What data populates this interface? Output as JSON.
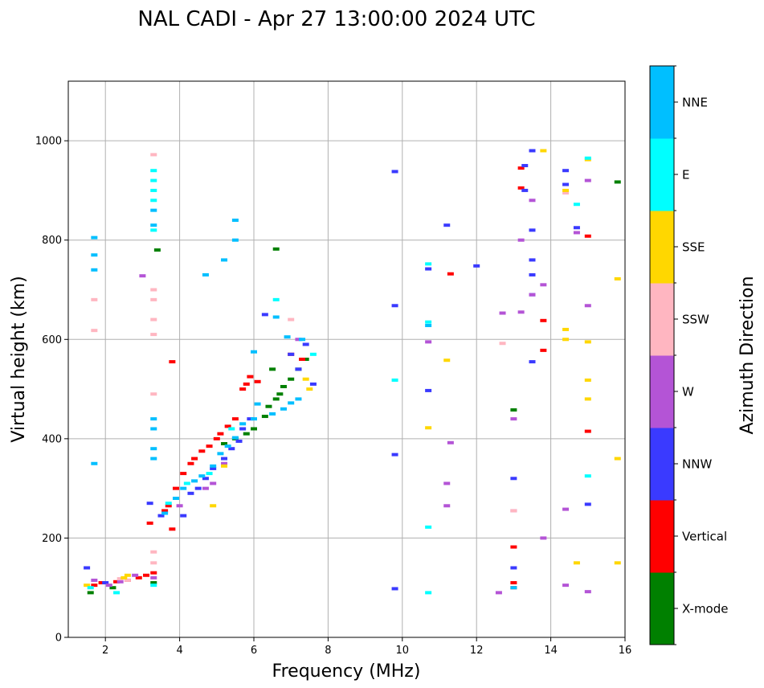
{
  "chart_data": {
    "type": "scatter",
    "title": "NAL CADI - Apr 27 13:00:00 2024 UTC",
    "xlabel": "Frequency (MHz)",
    "ylabel": "Virtual height (km)",
    "xlim": [
      1.0,
      16.0
    ],
    "ylim": [
      0,
      1120
    ],
    "xticks": [
      2,
      4,
      6,
      8,
      10,
      12,
      14,
      16
    ],
    "yticks": [
      0,
      200,
      400,
      600,
      800,
      1000
    ],
    "grid": true,
    "colorbar": {
      "title": "Azimuth Direction",
      "categories": [
        {
          "label": "X-mode",
          "color": "#008000"
        },
        {
          "label": "Vertical",
          "color": "#ff0000"
        },
        {
          "label": "NNW",
          "color": "#3a3aff"
        },
        {
          "label": "W",
          "color": "#b454d6"
        },
        {
          "label": "SSW",
          "color": "#ffb6c1"
        },
        {
          "label": "SSE",
          "color": "#ffd700"
        },
        {
          "label": "E",
          "color": "#00ffff"
        },
        {
          "label": "NNE",
          "color": "#00bfff"
        }
      ]
    },
    "series": [
      {
        "name": "X-mode",
        "points": [
          [
            1.6,
            90
          ],
          [
            2.2,
            100
          ],
          [
            3.3,
            110
          ],
          [
            5.2,
            390
          ],
          [
            5.5,
            400
          ],
          [
            5.8,
            410
          ],
          [
            6.0,
            420
          ],
          [
            6.3,
            445
          ],
          [
            6.4,
            465
          ],
          [
            6.6,
            480
          ],
          [
            6.7,
            490
          ],
          [
            6.8,
            505
          ],
          [
            7.0,
            520
          ],
          [
            7.2,
            540
          ],
          [
            7.4,
            560
          ],
          [
            6.5,
            540
          ],
          [
            6.6,
            782
          ],
          [
            3.4,
            780
          ],
          [
            13.0,
            458
          ],
          [
            15.8,
            917
          ]
        ]
      },
      {
        "name": "Vertical",
        "points": [
          [
            1.7,
            105
          ],
          [
            1.9,
            110
          ],
          [
            2.3,
            112
          ],
          [
            2.6,
            115
          ],
          [
            2.9,
            120
          ],
          [
            3.1,
            125
          ],
          [
            3.3,
            130
          ],
          [
            3.6,
            255
          ],
          [
            3.7,
            265
          ],
          [
            3.9,
            300
          ],
          [
            4.1,
            330
          ],
          [
            4.3,
            350
          ],
          [
            4.4,
            360
          ],
          [
            4.6,
            375
          ],
          [
            4.8,
            385
          ],
          [
            5.0,
            400
          ],
          [
            5.1,
            410
          ],
          [
            5.3,
            425
          ],
          [
            5.5,
            440
          ],
          [
            5.7,
            500
          ],
          [
            5.8,
            510
          ],
          [
            5.9,
            525
          ],
          [
            6.1,
            515
          ],
          [
            3.2,
            230
          ],
          [
            3.8,
            555
          ],
          [
            3.8,
            218
          ],
          [
            13.0,
            100
          ],
          [
            13.0,
            110
          ],
          [
            13.0,
            182
          ],
          [
            13.2,
            905
          ],
          [
            13.2,
            945
          ],
          [
            13.8,
            638
          ],
          [
            13.8,
            578
          ],
          [
            15.0,
            415
          ],
          [
            15.0,
            808
          ],
          [
            11.3,
            732
          ],
          [
            7.0,
            570
          ],
          [
            7.3,
            560
          ]
        ]
      },
      {
        "name": "NNW",
        "points": [
          [
            1.5,
            140
          ],
          [
            2.0,
            110
          ],
          [
            3.2,
            270
          ],
          [
            3.5,
            245
          ],
          [
            4.1,
            245
          ],
          [
            4.3,
            290
          ],
          [
            4.5,
            300
          ],
          [
            4.7,
            320
          ],
          [
            4.9,
            340
          ],
          [
            5.2,
            360
          ],
          [
            5.4,
            380
          ],
          [
            5.6,
            395
          ],
          [
            5.7,
            420
          ],
          [
            5.9,
            440
          ],
          [
            6.3,
            650
          ],
          [
            7.0,
            570
          ],
          [
            7.2,
            540
          ],
          [
            7.4,
            590
          ],
          [
            7.6,
            510
          ],
          [
            9.8,
            938
          ],
          [
            9.8,
            668
          ],
          [
            9.8,
            368
          ],
          [
            9.8,
            98
          ],
          [
            10.7,
            497
          ],
          [
            10.7,
            742
          ],
          [
            11.2,
            830
          ],
          [
            12.0,
            748
          ],
          [
            13.0,
            140
          ],
          [
            13.0,
            320
          ],
          [
            13.3,
            950
          ],
          [
            13.3,
            900
          ],
          [
            13.5,
            980
          ],
          [
            13.5,
            820
          ],
          [
            13.5,
            690
          ],
          [
            13.5,
            730
          ],
          [
            13.5,
            760
          ],
          [
            13.5,
            555
          ],
          [
            14.4,
            940
          ],
          [
            14.4,
            912
          ],
          [
            14.7,
            825
          ],
          [
            15.0,
            268
          ]
        ]
      },
      {
        "name": "W",
        "points": [
          [
            1.7,
            115
          ],
          [
            2.1,
            105
          ],
          [
            2.4,
            112
          ],
          [
            2.8,
            125
          ],
          [
            3.0,
            728
          ],
          [
            3.3,
            120
          ],
          [
            4.0,
            265
          ],
          [
            4.7,
            300
          ],
          [
            4.9,
            310
          ],
          [
            5.2,
            350
          ],
          [
            7.2,
            600
          ],
          [
            10.7,
            595
          ],
          [
            11.3,
            392
          ],
          [
            11.2,
            310
          ],
          [
            11.2,
            265
          ],
          [
            12.6,
            90
          ],
          [
            12.7,
            653
          ],
          [
            13.0,
            255
          ],
          [
            13.0,
            440
          ],
          [
            13.2,
            800
          ],
          [
            13.2,
            655
          ],
          [
            13.5,
            880
          ],
          [
            13.5,
            690
          ],
          [
            13.8,
            200
          ],
          [
            13.8,
            710
          ],
          [
            14.4,
            258
          ],
          [
            14.4,
            105
          ],
          [
            14.7,
            815
          ],
          [
            15.0,
            92
          ],
          [
            15.0,
            668
          ],
          [
            15.0,
            920
          ]
        ]
      },
      {
        "name": "SSW",
        "points": [
          [
            1.7,
            618
          ],
          [
            1.7,
            680
          ],
          [
            2.4,
            118
          ],
          [
            2.6,
            115
          ],
          [
            3.3,
            972
          ],
          [
            3.3,
            700
          ],
          [
            3.3,
            680
          ],
          [
            3.3,
            640
          ],
          [
            3.3,
            610
          ],
          [
            3.3,
            490
          ],
          [
            3.3,
            150
          ],
          [
            3.3,
            172
          ],
          [
            7.0,
            640
          ],
          [
            12.7,
            592
          ],
          [
            13.0,
            255
          ],
          [
            14.4,
            895
          ]
        ]
      },
      {
        "name": "SSE",
        "points": [
          [
            1.5,
            105
          ],
          [
            2.5,
            120
          ],
          [
            2.6,
            125
          ],
          [
            4.9,
            265
          ],
          [
            5.2,
            345
          ],
          [
            7.5,
            500
          ],
          [
            7.4,
            520
          ],
          [
            10.7,
            422
          ],
          [
            11.2,
            558
          ],
          [
            13.8,
            980
          ],
          [
            14.4,
            600
          ],
          [
            14.4,
            620
          ],
          [
            14.4,
            900
          ],
          [
            14.7,
            150
          ],
          [
            15.0,
            480
          ],
          [
            15.0,
            518
          ],
          [
            15.0,
            595
          ],
          [
            15.0,
            962
          ],
          [
            15.8,
            150
          ],
          [
            15.8,
            360
          ],
          [
            15.8,
            722
          ]
        ]
      },
      {
        "name": "E",
        "points": [
          [
            1.6,
            100
          ],
          [
            2.3,
            90
          ],
          [
            3.3,
            105
          ],
          [
            3.7,
            270
          ],
          [
            4.2,
            310
          ],
          [
            4.8,
            330
          ],
          [
            5.4,
            420
          ],
          [
            6.6,
            680
          ],
          [
            7.6,
            570
          ],
          [
            9.8,
            518
          ],
          [
            10.7,
            222
          ],
          [
            10.7,
            90
          ],
          [
            10.7,
            635
          ],
          [
            10.7,
            752
          ],
          [
            14.7,
            872
          ],
          [
            15.0,
            325
          ],
          [
            15.0,
            965
          ],
          [
            3.3,
            820
          ],
          [
            3.3,
            880
          ],
          [
            3.3,
            900
          ],
          [
            3.3,
            920
          ],
          [
            3.3,
            940
          ]
        ]
      },
      {
        "name": "NNE",
        "points": [
          [
            1.7,
            350
          ],
          [
            1.7,
            740
          ],
          [
            1.7,
            770
          ],
          [
            1.7,
            805
          ],
          [
            3.3,
            830
          ],
          [
            3.3,
            860
          ],
          [
            3.3,
            440
          ],
          [
            3.3,
            420
          ],
          [
            3.3,
            380
          ],
          [
            3.3,
            360
          ],
          [
            3.6,
            250
          ],
          [
            3.9,
            280
          ],
          [
            4.1,
            300
          ],
          [
            4.4,
            315
          ],
          [
            4.6,
            325
          ],
          [
            4.9,
            345
          ],
          [
            5.1,
            370
          ],
          [
            5.3,
            385
          ],
          [
            5.5,
            402
          ],
          [
            5.7,
            430
          ],
          [
            6.0,
            440
          ],
          [
            6.1,
            470
          ],
          [
            6.5,
            450
          ],
          [
            6.8,
            460
          ],
          [
            7.0,
            472
          ],
          [
            7.2,
            480
          ],
          [
            7.3,
            600
          ],
          [
            4.7,
            730
          ],
          [
            5.2,
            760
          ],
          [
            5.5,
            800
          ],
          [
            5.5,
            840
          ],
          [
            6.0,
            575
          ],
          [
            6.6,
            645
          ],
          [
            6.9,
            605
          ],
          [
            10.7,
            628
          ],
          [
            13.0,
            100
          ]
        ]
      }
    ]
  }
}
